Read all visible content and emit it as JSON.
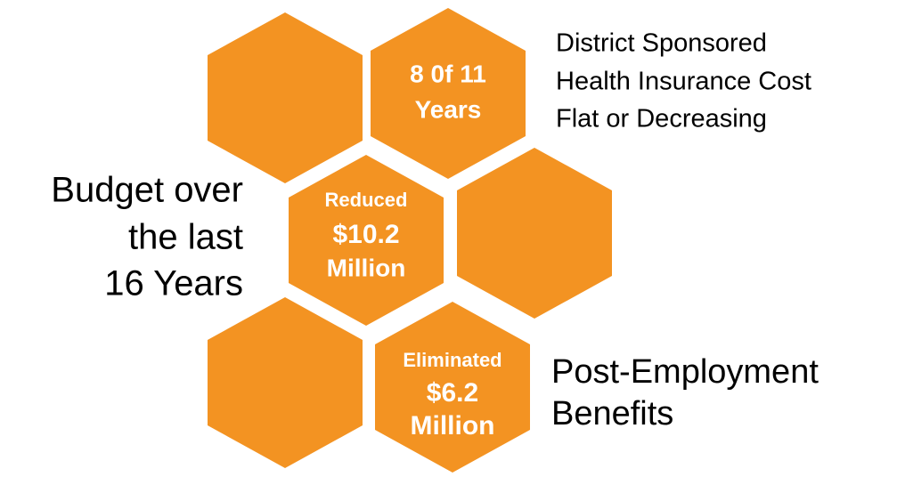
{
  "budget_label": {
    "lines": [
      "Budget over",
      "the last",
      "16 Years"
    ]
  },
  "health_label": {
    "lines": [
      "District Sponsored",
      "Health Insurance Cost",
      "Flat or Decreasing"
    ]
  },
  "benefits_label": {
    "lines": [
      "Post-Employment",
      "Benefits"
    ]
  },
  "hexagons": [
    {
      "lines": [
        "8 0f 11",
        "Years"
      ]
    },
    {
      "lines": [
        "Reduced",
        "$10.2",
        "Million"
      ]
    },
    {
      "lines": [
        "Eliminated",
        "$6.2",
        "Million"
      ]
    }
  ]
}
